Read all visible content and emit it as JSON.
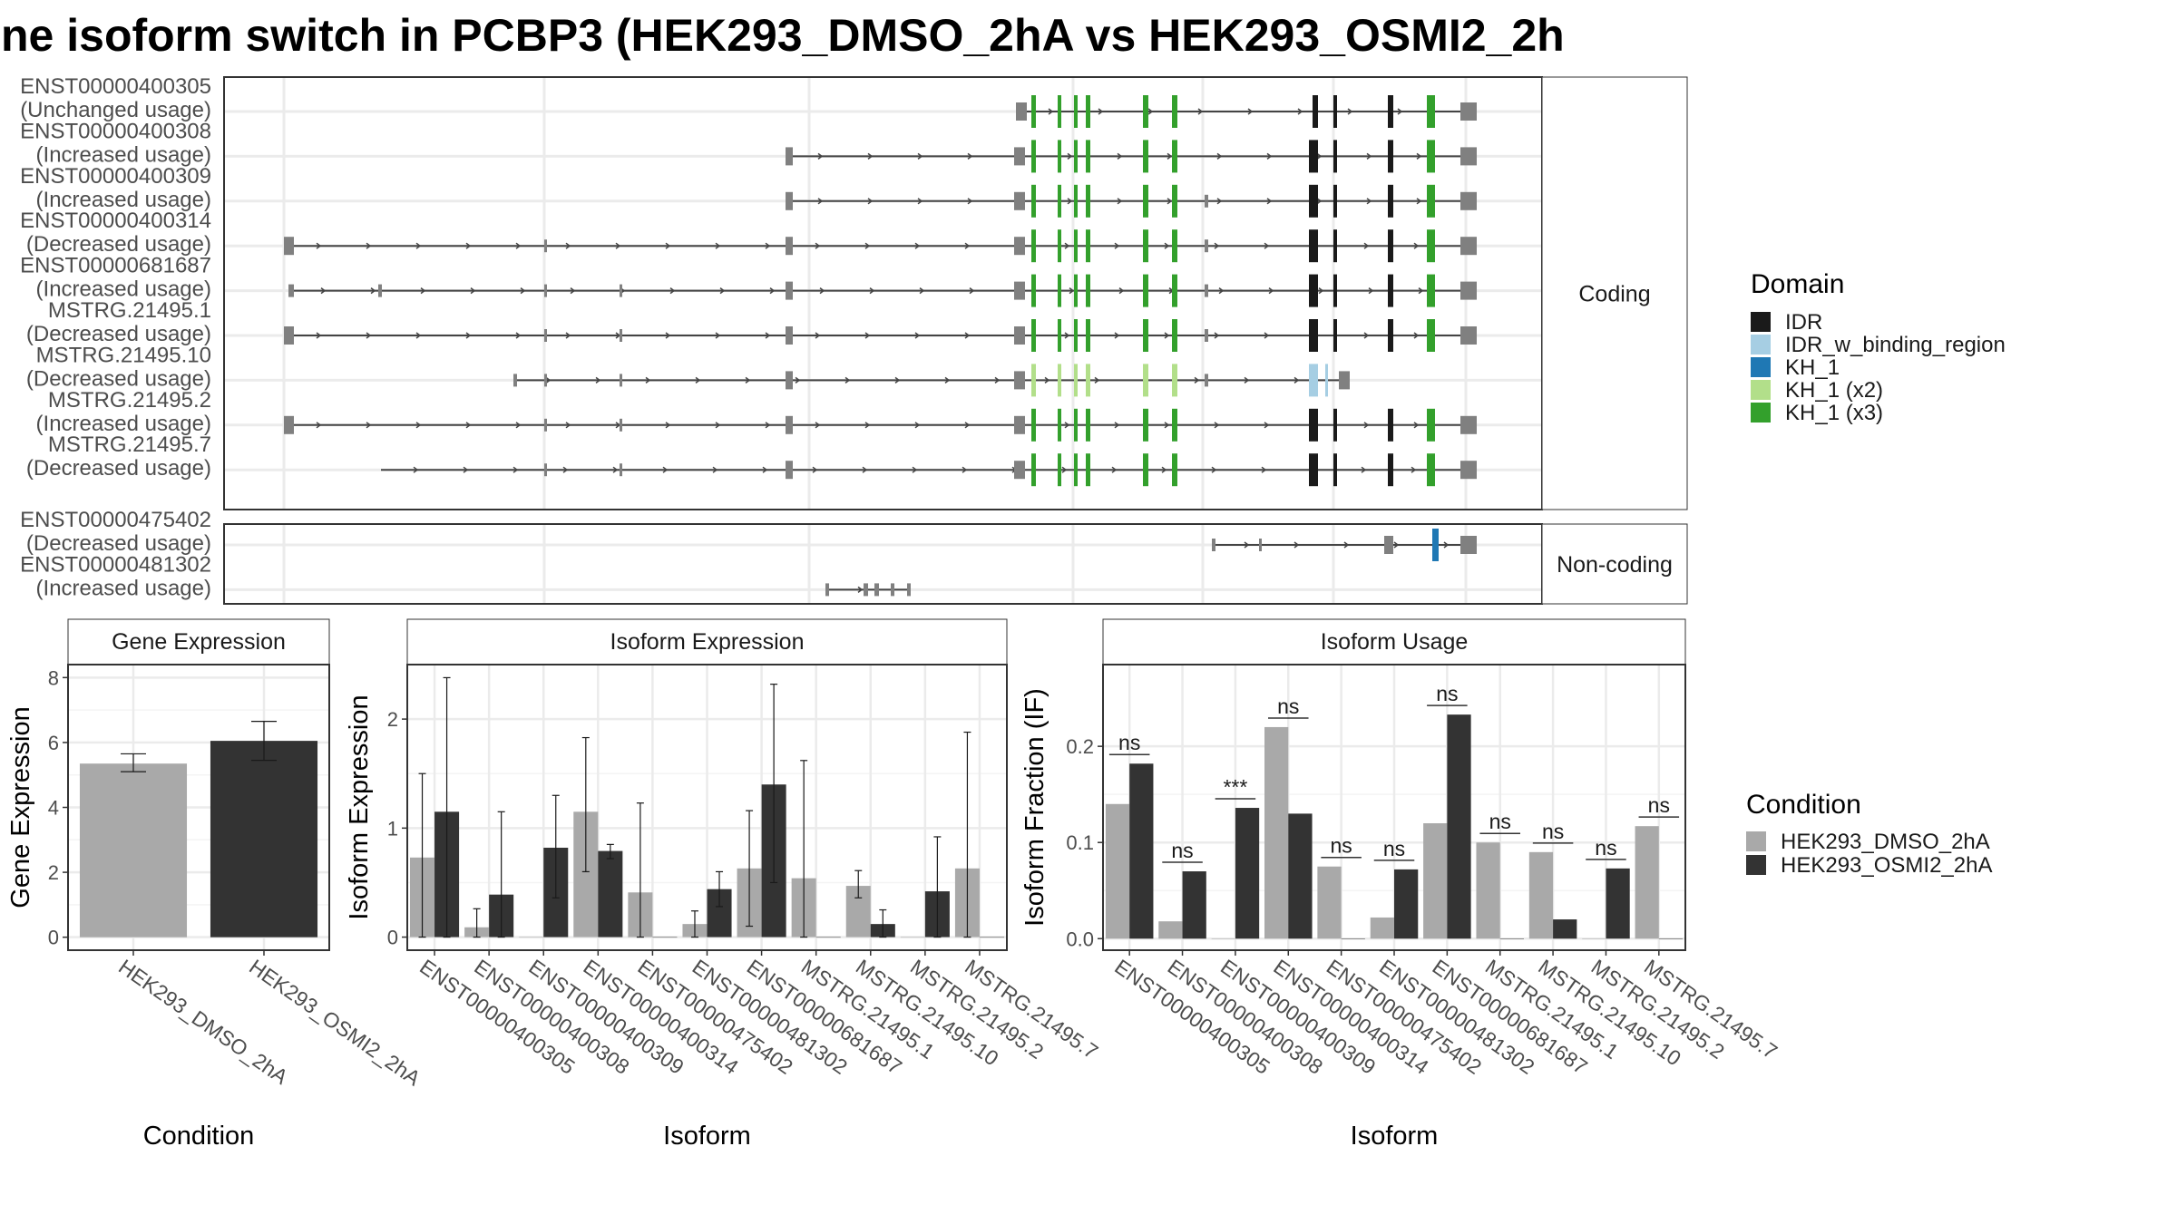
{
  "title": "ne isoform switch in PCBP3 (HEK293_DMSO_2hA vs HEK293_OSMI2_2h",
  "colors": {
    "cond1": "#a9a9a9",
    "cond2": "#333333",
    "exon": "#808080",
    "IDR": "#1a1a1a",
    "IDR_w_binding_region": "#a6cee3",
    "KH_1": "#1f78b4",
    "KH_1 (x2)": "#b2df8a",
    "KH_1 (x3)": "#33a02c"
  },
  "strips": {
    "coding": "Coding",
    "noncoding": "Non-coding",
    "gene_expression": "Gene Expression",
    "isoform_expression": "Isoform Expression",
    "isoform_usage": "Isoform Usage"
  },
  "legends": {
    "domain_title": "Domain",
    "domain_items": [
      "IDR",
      "IDR_w_binding_region",
      "KH_1",
      "KH_1 (x2)",
      "KH_1 (x3)"
    ],
    "condition_title": "Condition",
    "condition_items": [
      "HEK293_DMSO_2hA",
      "HEK293_OSMI2_2hA"
    ]
  },
  "transcripts": {
    "coding": [
      {
        "id": "ENST00000400305",
        "usage": "(Unchanged usage)",
        "start": 1127,
        "exons": [
          [
            1120,
            1132
          ],
          [
            1610,
            1628
          ]
        ],
        "domains": [
          [
            "KH_1 (x3)",
            1137,
            1142
          ],
          [
            "KH_1 (x3)",
            1166,
            1170
          ],
          [
            "KH_1 (x3)",
            1184,
            1188
          ],
          [
            "KH_1 (x3)",
            1197,
            1202
          ],
          [
            "KH_1 (x3)",
            1260,
            1266
          ],
          [
            "KH_1 (x3)",
            1292,
            1298
          ],
          [
            "IDR",
            1447,
            1453
          ],
          [
            "IDR",
            1470,
            1474
          ],
          [
            "IDR",
            1530,
            1536
          ],
          [
            "KH_1 (x3)",
            1573,
            1582
          ]
        ]
      },
      {
        "id": "ENST00000400308",
        "usage": "(Increased usage)",
        "start": 870,
        "exons": [
          [
            866,
            874
          ],
          [
            1118,
            1130
          ],
          [
            1610,
            1628
          ]
        ],
        "domains": [
          [
            "KH_1 (x3)",
            1137,
            1142
          ],
          [
            "KH_1 (x3)",
            1166,
            1170
          ],
          [
            "KH_1 (x3)",
            1184,
            1188
          ],
          [
            "KH_1 (x3)",
            1197,
            1202
          ],
          [
            "KH_1 (x3)",
            1260,
            1266
          ],
          [
            "KH_1 (x3)",
            1292,
            1298
          ],
          [
            "IDR",
            1443,
            1453
          ],
          [
            "IDR",
            1470,
            1474
          ],
          [
            "IDR",
            1530,
            1536
          ],
          [
            "KH_1 (x3)",
            1573,
            1582
          ]
        ]
      },
      {
        "id": "ENST00000400309",
        "usage": "(Increased usage)",
        "start": 870,
        "exons": [
          [
            866,
            874
          ],
          [
            1118,
            1130
          ],
          [
            1328,
            1332
          ],
          [
            1610,
            1628
          ]
        ],
        "domains": [
          [
            "KH_1 (x3)",
            1137,
            1142
          ],
          [
            "KH_1 (x3)",
            1166,
            1170
          ],
          [
            "KH_1 (x3)",
            1184,
            1188
          ],
          [
            "KH_1 (x3)",
            1197,
            1202
          ],
          [
            "KH_1 (x3)",
            1260,
            1266
          ],
          [
            "KH_1 (x3)",
            1292,
            1298
          ],
          [
            "IDR",
            1443,
            1453
          ],
          [
            "IDR",
            1470,
            1474
          ],
          [
            "IDR",
            1530,
            1536
          ],
          [
            "KH_1 (x3)",
            1573,
            1582
          ]
        ]
      },
      {
        "id": "ENST00000400314",
        "usage": "(Decreased usage)",
        "start": 317,
        "exons": [
          [
            313,
            324
          ],
          [
            600,
            603
          ],
          [
            866,
            874
          ],
          [
            1118,
            1130
          ],
          [
            1328,
            1332
          ],
          [
            1610,
            1628
          ]
        ],
        "domains": [
          [
            "KH_1 (x3)",
            1137,
            1142
          ],
          [
            "KH_1 (x3)",
            1166,
            1170
          ],
          [
            "KH_1 (x3)",
            1184,
            1188
          ],
          [
            "KH_1 (x3)",
            1197,
            1202
          ],
          [
            "KH_1 (x3)",
            1260,
            1266
          ],
          [
            "KH_1 (x3)",
            1292,
            1298
          ],
          [
            "IDR",
            1443,
            1453
          ],
          [
            "IDR",
            1470,
            1474
          ],
          [
            "IDR",
            1530,
            1536
          ],
          [
            "KH_1 (x3)",
            1573,
            1582
          ]
        ]
      },
      {
        "id": "ENST00000681687",
        "usage": "(Increased usage)",
        "start": 320,
        "exons": [
          [
            318,
            324
          ],
          [
            417,
            421
          ],
          [
            600,
            603
          ],
          [
            683,
            686
          ],
          [
            866,
            874
          ],
          [
            1118,
            1130
          ],
          [
            1328,
            1332
          ],
          [
            1610,
            1628
          ]
        ],
        "domains": [
          [
            "KH_1 (x3)",
            1137,
            1142
          ],
          [
            "KH_1 (x3)",
            1166,
            1170
          ],
          [
            "KH_1 (x3)",
            1184,
            1188
          ],
          [
            "KH_1 (x3)",
            1197,
            1202
          ],
          [
            "KH_1 (x3)",
            1260,
            1266
          ],
          [
            "KH_1 (x3)",
            1292,
            1298
          ],
          [
            "IDR",
            1443,
            1453
          ],
          [
            "IDR",
            1470,
            1474
          ],
          [
            "IDR",
            1530,
            1536
          ],
          [
            "KH_1 (x3)",
            1573,
            1582
          ]
        ]
      },
      {
        "id": "MSTRG.21495.1",
        "usage": "(Decreased usage)",
        "start": 317,
        "exons": [
          [
            313,
            324
          ],
          [
            600,
            603
          ],
          [
            683,
            686
          ],
          [
            866,
            874
          ],
          [
            1118,
            1130
          ],
          [
            1328,
            1332
          ],
          [
            1610,
            1628
          ]
        ],
        "domains": [
          [
            "KH_1 (x3)",
            1137,
            1142
          ],
          [
            "KH_1 (x3)",
            1166,
            1170
          ],
          [
            "KH_1 (x3)",
            1184,
            1188
          ],
          [
            "KH_1 (x3)",
            1197,
            1202
          ],
          [
            "KH_1 (x3)",
            1260,
            1266
          ],
          [
            "KH_1 (x3)",
            1292,
            1298
          ],
          [
            "IDR",
            1443,
            1453
          ],
          [
            "IDR",
            1470,
            1474
          ],
          [
            "IDR",
            1530,
            1536
          ],
          [
            "KH_1 (x3)",
            1573,
            1582
          ]
        ]
      },
      {
        "id": "MSTRG.21495.10",
        "usage": "(Decreased usage)",
        "start": 568,
        "end": 1482,
        "exons": [
          [
            566,
            570
          ],
          [
            600,
            603
          ],
          [
            683,
            686
          ],
          [
            866,
            874
          ],
          [
            1118,
            1130
          ],
          [
            1328,
            1332
          ],
          [
            1476,
            1488
          ]
        ],
        "domains": [
          [
            "KH_1 (x2)",
            1137,
            1142
          ],
          [
            "KH_1 (x2)",
            1166,
            1170
          ],
          [
            "KH_1 (x2)",
            1184,
            1188
          ],
          [
            "KH_1 (x2)",
            1197,
            1202
          ],
          [
            "KH_1 (x2)",
            1260,
            1266
          ],
          [
            "KH_1 (x2)",
            1292,
            1298
          ],
          [
            "IDR_w_binding_region",
            1443,
            1453
          ],
          [
            "IDR_w_binding_region",
            1461,
            1464
          ]
        ]
      },
      {
        "id": "MSTRG.21495.2",
        "usage": "(Increased usage)",
        "start": 317,
        "exons": [
          [
            313,
            324
          ],
          [
            600,
            603
          ],
          [
            683,
            686
          ],
          [
            866,
            874
          ],
          [
            1118,
            1130
          ],
          [
            1610,
            1628
          ]
        ],
        "domains": [
          [
            "KH_1 (x3)",
            1137,
            1142
          ],
          [
            "KH_1 (x3)",
            1166,
            1170
          ],
          [
            "KH_1 (x3)",
            1184,
            1188
          ],
          [
            "KH_1 (x3)",
            1197,
            1202
          ],
          [
            "KH_1 (x3)",
            1260,
            1266
          ],
          [
            "KH_1 (x3)",
            1292,
            1298
          ],
          [
            "IDR",
            1443,
            1453
          ],
          [
            "IDR",
            1470,
            1474
          ],
          [
            "IDR",
            1530,
            1536
          ],
          [
            "KH_1 (x3)",
            1573,
            1582
          ]
        ]
      },
      {
        "id": "MSTRG.21495.7",
        "usage": "(Decreased usage)",
        "start": 420,
        "exons": [
          [
            600,
            603
          ],
          [
            683,
            686
          ],
          [
            866,
            874
          ],
          [
            1118,
            1130
          ],
          [
            1610,
            1628
          ]
        ],
        "domains": [
          [
            "KH_1 (x3)",
            1137,
            1142
          ],
          [
            "KH_1 (x3)",
            1166,
            1170
          ],
          [
            "KH_1 (x3)",
            1184,
            1188
          ],
          [
            "KH_1 (x3)",
            1197,
            1202
          ],
          [
            "KH_1 (x3)",
            1260,
            1266
          ],
          [
            "KH_1 (x3)",
            1292,
            1298
          ],
          [
            "IDR",
            1443,
            1453
          ],
          [
            "IDR",
            1470,
            1474
          ],
          [
            "IDR",
            1530,
            1536
          ],
          [
            "KH_1 (x3)",
            1573,
            1582
          ]
        ]
      }
    ],
    "noncoding": [
      {
        "id": "ENST00000475402",
        "usage": "(Decreased usage)",
        "start": 1338,
        "exons": [
          [
            1336,
            1340
          ],
          [
            1388,
            1391
          ],
          [
            1526,
            1536
          ],
          [
            1610,
            1628
          ]
        ],
        "domains": [
          [
            "KH_1",
            1579,
            1586
          ]
        ]
      },
      {
        "id": "ENST00000481302",
        "usage": "(Increased usage)",
        "start": 912,
        "end": 1004,
        "exons": [
          [
            910,
            914
          ],
          [
            952,
            957
          ],
          [
            964,
            969
          ],
          [
            982,
            986
          ],
          [
            1000,
            1004
          ]
        ],
        "domains": []
      }
    ]
  },
  "chart_data": [
    {
      "type": "bar",
      "title": "Gene Expression",
      "xlabel": "Condition",
      "ylabel": "Gene Expression",
      "ylim": [
        -0.4,
        8.4
      ],
      "yticks": [
        0,
        2,
        4,
        6,
        8
      ],
      "categories": [
        "HEK293_DMSO_2hA",
        "HEK293_OSMI2_2hA"
      ],
      "values": [
        5.35,
        6.05
      ],
      "error_low": [
        5.1,
        5.45
      ],
      "error_high": [
        5.65,
        6.65
      ],
      "grid": true
    },
    {
      "type": "bar",
      "title": "Isoform Expression",
      "xlabel": "Isoform",
      "ylabel": "Isoform Expression",
      "ylim": [
        -0.12,
        2.5
      ],
      "yticks": [
        0,
        1,
        2
      ],
      "categories": [
        "ENST00000400305",
        "ENST00000400308",
        "ENST00000400309",
        "ENST00000400314",
        "ENST00000475402",
        "ENST00000481302",
        "ENST00000681687",
        "MSTRG.21495.1",
        "MSTRG.21495.10",
        "MSTRG.21495.2",
        "MSTRG.21495.7"
      ],
      "series": [
        {
          "name": "HEK293_DMSO_2hA",
          "values": [
            0.73,
            0.09,
            0.0,
            1.15,
            0.41,
            0.12,
            0.63,
            0.54,
            0.47,
            0.0,
            0.63
          ],
          "error_low": [
            0.0,
            0.0,
            0.0,
            0.6,
            0.0,
            0.0,
            0.1,
            0.0,
            0.36,
            0.0,
            0.0
          ],
          "error_high": [
            1.5,
            0.26,
            0.0,
            1.83,
            1.23,
            0.24,
            1.16,
            1.62,
            0.61,
            0.0,
            1.88
          ]
        },
        {
          "name": "HEK293_OSMI2_2hA",
          "values": [
            1.15,
            0.39,
            0.82,
            0.79,
            0.0,
            0.44,
            1.4,
            0.0,
            0.12,
            0.42,
            0.0
          ],
          "error_low": [
            0.0,
            0.0,
            0.36,
            0.72,
            0.0,
            0.28,
            0.5,
            0.0,
            0.0,
            0.0,
            0.0
          ],
          "error_high": [
            2.38,
            1.15,
            1.3,
            0.85,
            0.0,
            0.6,
            2.32,
            0.0,
            0.25,
            0.92,
            0.0
          ]
        }
      ],
      "grid": true
    },
    {
      "type": "bar",
      "title": "Isoform Usage",
      "xlabel": "Isoform",
      "ylabel": "Isoform Fraction (IF)",
      "ylim": [
        -0.012,
        0.285
      ],
      "yticks": [
        0.0,
        0.1,
        0.2
      ],
      "ytick_labels": [
        "0.0",
        "0.1",
        "0.2"
      ],
      "categories": [
        "ENST00000400305",
        "ENST00000400308",
        "ENST00000400309",
        "ENST00000400314",
        "ENST00000475402",
        "ENST00000481302",
        "ENST00000681687",
        "MSTRG.21495.1",
        "MSTRG.21495.10",
        "MSTRG.21495.2",
        "MSTRG.21495.7"
      ],
      "series": [
        {
          "name": "HEK293_DMSO_2hA",
          "values": [
            0.14,
            0.018,
            0.0,
            0.22,
            0.075,
            0.022,
            0.12,
            0.1,
            0.09,
            0.0,
            0.117
          ]
        },
        {
          "name": "HEK293_OSMI2_2hA",
          "values": [
            0.182,
            0.07,
            0.136,
            0.13,
            0.0,
            0.072,
            0.233,
            0.0,
            0.02,
            0.073,
            0.0
          ]
        }
      ],
      "significance": [
        "ns",
        "ns",
        "***",
        "ns",
        "ns",
        "ns",
        "ns",
        "ns",
        "ns",
        "ns",
        "ns"
      ],
      "grid": true
    }
  ]
}
